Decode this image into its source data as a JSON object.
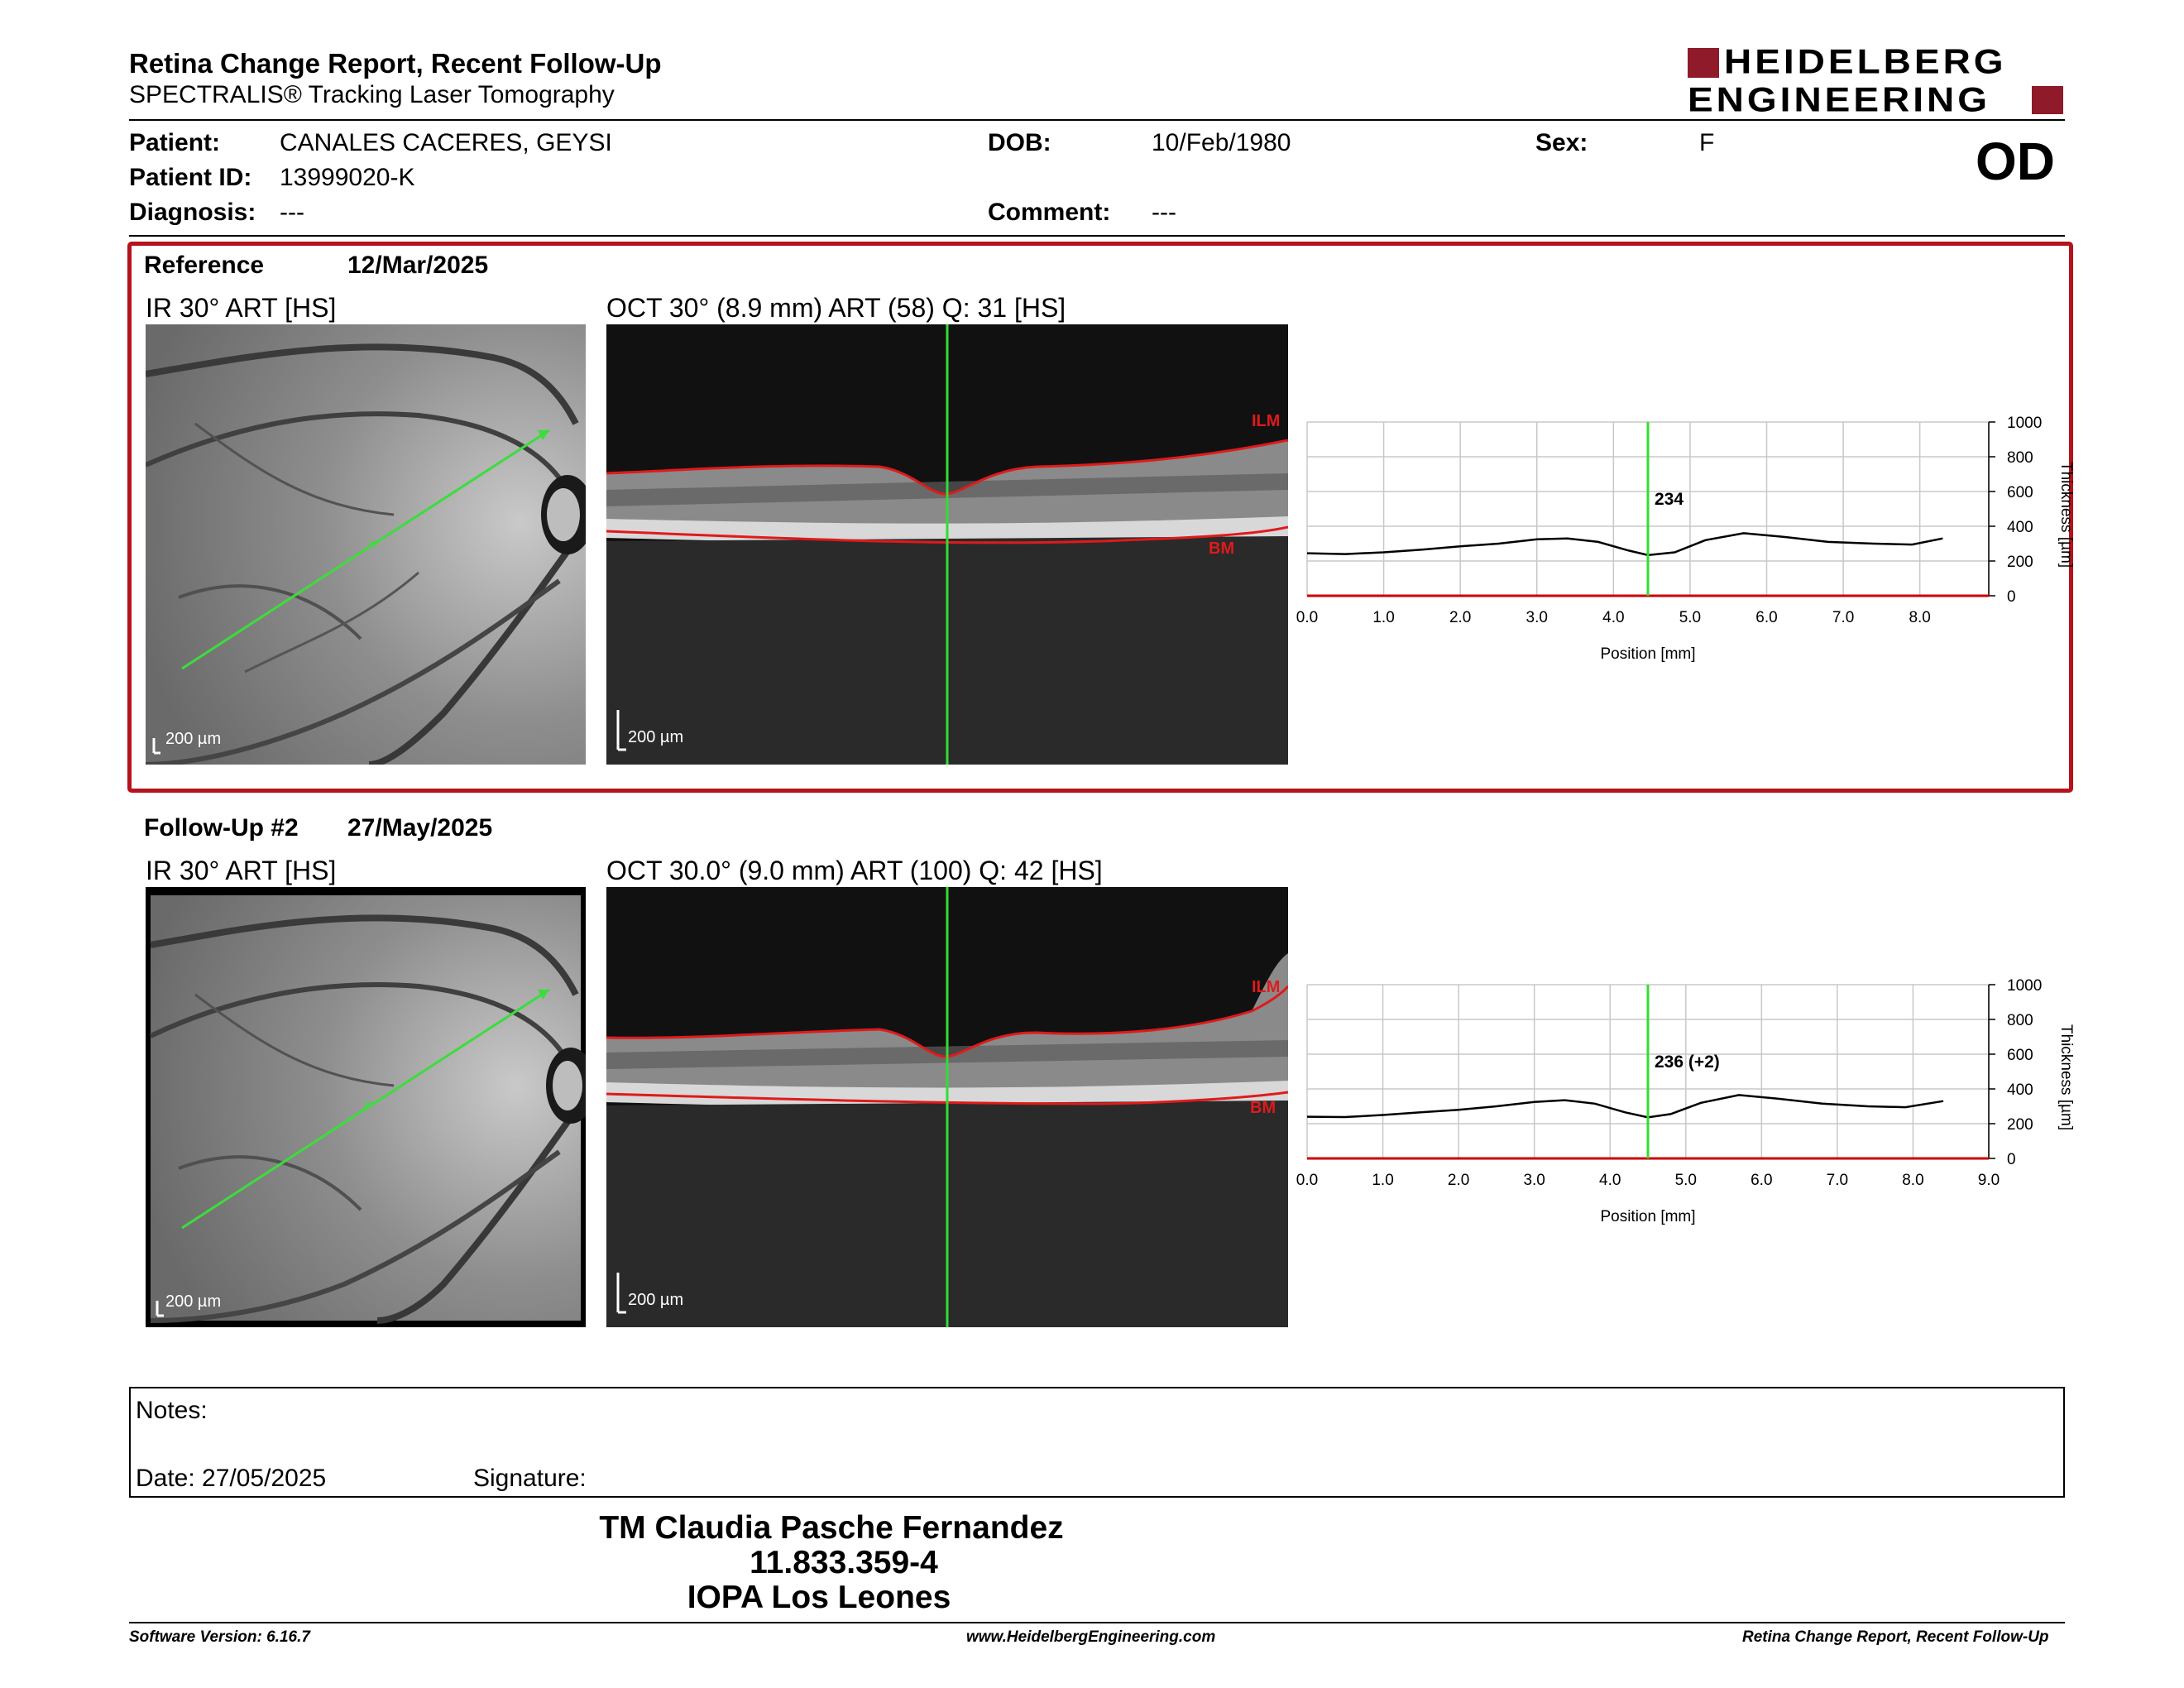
{
  "header": {
    "title": "Retina Change Report, Recent Follow-Up",
    "subtitle": "SPECTRALIS® Tracking Laser Tomography",
    "logo_line1": "HEIDELBERG",
    "logo_line2": "ENGINEERING",
    "eye": "OD"
  },
  "patient": {
    "patient_label": "Patient:",
    "patient_name": "CANALES CACERES, GEYSI",
    "id_label": "Patient ID:",
    "id_value": "13999020-K",
    "diagnosis_label": "Diagnosis:",
    "diagnosis_value": "---",
    "dob_label": "DOB:",
    "dob_value": "10/Feb/1980",
    "comment_label": "Comment:",
    "comment_value": "---",
    "sex_label": "Sex:",
    "sex_value": "F"
  },
  "reference": {
    "label": "Reference",
    "date": "12/Mar/2025",
    "ir_title": "IR 30° ART [HS]",
    "oct_title": "OCT 30° (8.9 mm) ART (58) Q: 31 [HS]",
    "ir_scale": "200 µm",
    "oct_scale": "200 µm",
    "ilm_label": "ILM",
    "bm_label": "BM"
  },
  "followup": {
    "label": "Follow-Up #2",
    "date": "27/May/2025",
    "ir_title": "IR 30° ART [HS]",
    "oct_title": "OCT 30.0° (9.0 mm) ART (100) Q: 42 [HS]",
    "ir_scale": "200 µm",
    "oct_scale": "200 µm",
    "ilm_label": "ILM",
    "bm_label": "BM"
  },
  "chart_data": [
    {
      "type": "line",
      "ylabel": "Thickness [µm]",
      "xlabel": "Position [mm]",
      "xlim": [
        0,
        8.9
      ],
      "ylim": [
        0,
        1000
      ],
      "xticks": [
        "0.0",
        "1.0",
        "2.0",
        "3.0",
        "4.0",
        "5.0",
        "6.0",
        "7.0",
        "8.0"
      ],
      "yticks": [
        "0",
        "200",
        "400",
        "600",
        "800",
        "1000"
      ],
      "marker_x": 4.45,
      "marker_label": "234",
      "grid": true,
      "x": [
        0,
        0.5,
        1.0,
        1.5,
        2.0,
        2.5,
        3.0,
        3.4,
        3.8,
        4.2,
        4.45,
        4.8,
        5.2,
        5.7,
        6.2,
        6.8,
        7.4,
        7.9,
        8.3
      ],
      "values": [
        245,
        240,
        250,
        265,
        285,
        300,
        325,
        330,
        310,
        260,
        234,
        250,
        320,
        360,
        340,
        310,
        300,
        295,
        330
      ],
      "colors": {
        "line": "#000000",
        "marker": "#33dd33",
        "baseline": "#cc0000",
        "grid": "#c8c8c8"
      }
    },
    {
      "type": "line",
      "ylabel": "Thickness [µm]",
      "xlabel": "Position [mm]",
      "xlim": [
        0,
        9.0
      ],
      "ylim": [
        0,
        1000
      ],
      "xticks": [
        "0.0",
        "1.0",
        "2.0",
        "3.0",
        "4.0",
        "5.0",
        "6.0",
        "7.0",
        "8.0",
        "9.0"
      ],
      "yticks": [
        "0",
        "200",
        "400",
        "600",
        "800",
        "1000"
      ],
      "marker_x": 4.5,
      "marker_label": "236 (+2)",
      "grid": true,
      "x": [
        0,
        0.5,
        1.0,
        1.5,
        2.0,
        2.5,
        3.0,
        3.4,
        3.8,
        4.2,
        4.5,
        4.8,
        5.2,
        5.7,
        6.2,
        6.8,
        7.4,
        7.9,
        8.4
      ],
      "values": [
        240,
        238,
        250,
        265,
        280,
        300,
        325,
        335,
        315,
        265,
        236,
        255,
        320,
        365,
        345,
        315,
        300,
        295,
        330
      ],
      "colors": {
        "line": "#000000",
        "marker": "#33dd33",
        "baseline": "#cc0000",
        "grid": "#c8c8c8"
      }
    }
  ],
  "notes": {
    "notes_label": "Notes:",
    "date_label": "Date: 27/05/2025",
    "signature_label": "Signature:"
  },
  "stamp": {
    "line1": "TM Claudia Pasche Fernandez",
    "line2": "11.833.359-4",
    "line3": "IOPA Los Leones"
  },
  "footer": {
    "software": "Software Version: 6.16.7",
    "website": "www.HeidelbergEngineering.com",
    "report_name": "Retina Change Report, Recent Follow-Up"
  }
}
